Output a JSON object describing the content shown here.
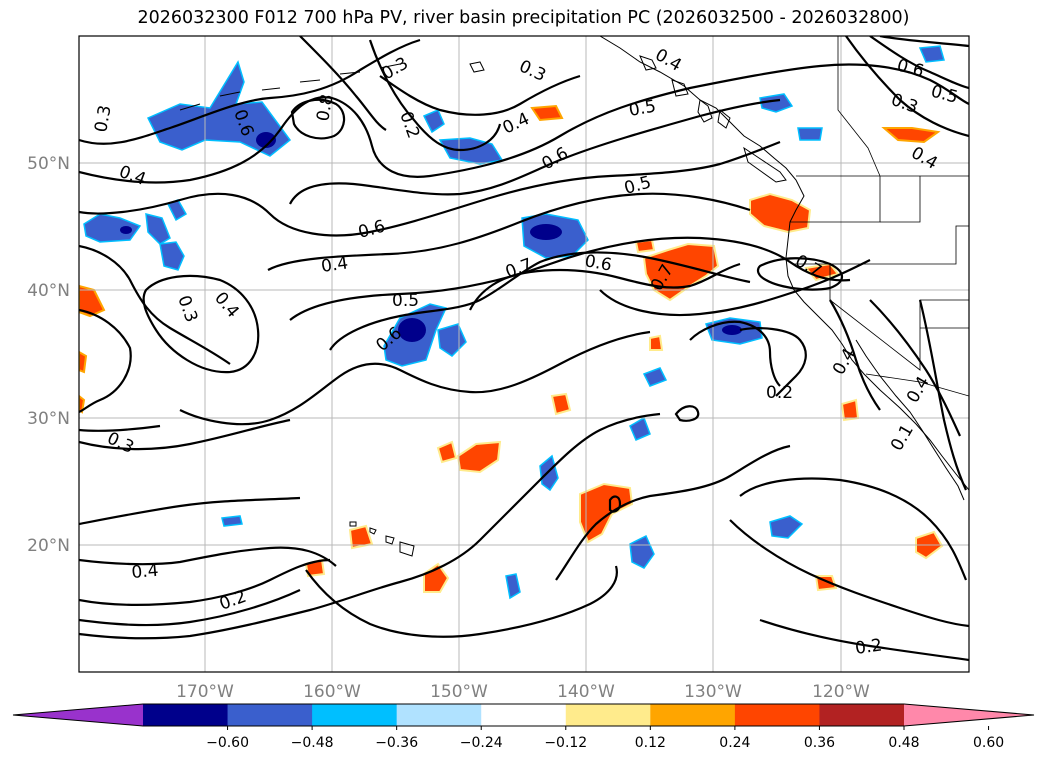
{
  "title": "2026032300 F012 700 hPa PV, river basin precipitation PC (2026032500 - 2026032800)",
  "latitude_labels": [
    "50°N",
    "40°N",
    "30°N",
    "20°N"
  ],
  "longitude_labels": [
    "170°W",
    "160°W",
    "150°W",
    "140°W",
    "130°W",
    "120°W"
  ],
  "contour_labels": [
    "0.3",
    "0.6",
    "0.8",
    "0.2",
    "0.4",
    "0.3",
    "0.6",
    "0.5",
    "0.3",
    "0.5",
    "0.6",
    "0.4",
    "0.4",
    "0.6",
    "0.4",
    "0.5",
    "0.7",
    "0.6",
    "0.7",
    "0.7",
    "0.3",
    "0.4",
    "0.6",
    "0.4",
    "0.2",
    "0.3",
    "0.4",
    "0.2",
    "0.2",
    "0.3",
    "0.5",
    "0.4",
    "0.1",
    "0.4"
  ],
  "colorbar": {
    "tick_labels": [
      "−0.60",
      "−0.48",
      "−0.36",
      "−0.24",
      "−0.12",
      "0.12",
      "0.24",
      "0.36",
      "0.48",
      "0.60"
    ],
    "colors": [
      "#9932cc",
      "#00008b",
      "#3a5fcd",
      "#00bfff",
      "#b0e2ff",
      "#ffffff",
      "#ffeb8c",
      "#ffa500",
      "#ff4500",
      "#b22222",
      "#ff88aa"
    ]
  },
  "field_colors": {
    "strong_negative": "#00008b",
    "negative": "#3a5fcd",
    "weak_negative": "#00bfff",
    "positive": "#ff4500",
    "weak_positive": "#ffa500",
    "light_positive": "#ffeb8c"
  }
}
